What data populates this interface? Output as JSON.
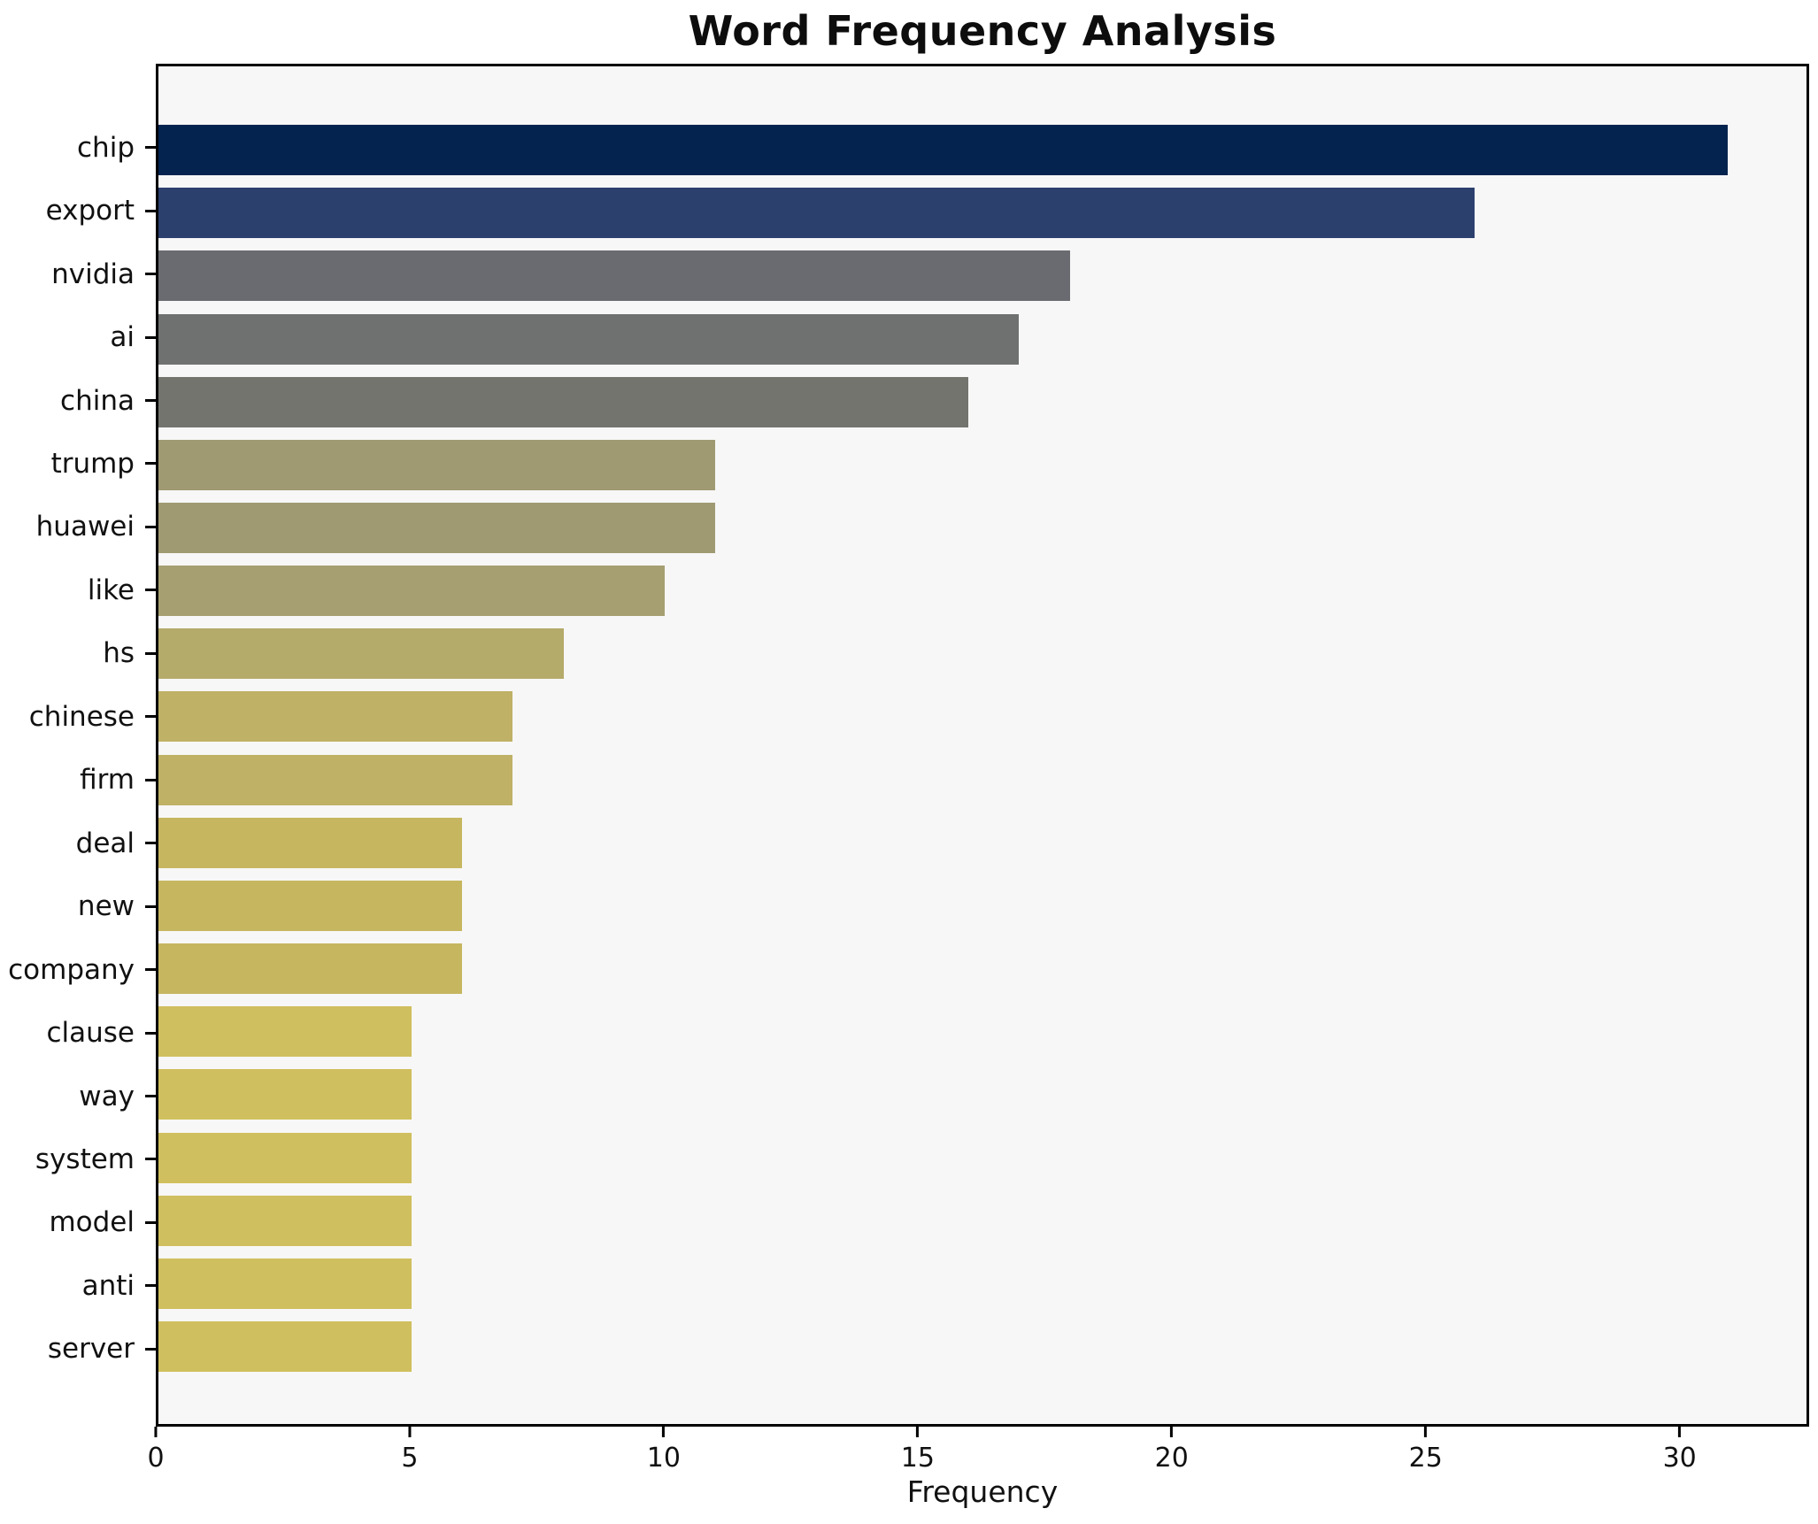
{
  "title": "Word Frequency Analysis",
  "xlabel": "Frequency",
  "chart_data": {
    "type": "bar",
    "orientation": "horizontal",
    "title": "Word Frequency Analysis",
    "xlabel": "Frequency",
    "ylabel": "",
    "categories": [
      "chip",
      "export",
      "nvidia",
      "ai",
      "china",
      "trump",
      "huawei",
      "like",
      "hs",
      "chinese",
      "firm",
      "deal",
      "new",
      "company",
      "clause",
      "way",
      "system",
      "model",
      "anti",
      "server"
    ],
    "values": [
      31,
      26,
      18,
      17,
      16,
      11,
      11,
      10,
      8,
      7,
      7,
      6,
      6,
      6,
      5,
      5,
      5,
      5,
      5,
      5
    ],
    "bar_colors": [
      "#04234f",
      "#2c406e",
      "#6a6b70",
      "#6f7070",
      "#74746f",
      "#a09a72",
      "#a09a72",
      "#a69f71",
      "#b4aa6a",
      "#bfb166",
      "#bfb166",
      "#c6b660",
      "#c6b660",
      "#c6b660",
      "#d0bf5e",
      "#d0bf5e",
      "#d0bf5e",
      "#d0bf5e",
      "#d0bf5e",
      "#d0bf5e"
    ],
    "xlim": [
      0,
      32.55
    ],
    "xticks": [
      0,
      5,
      10,
      15,
      20,
      25,
      30
    ],
    "grid": false,
    "legend": null,
    "plot_background": "#f7f7f7",
    "figure_background": "#ffffff",
    "axis_color": "#000000"
  }
}
